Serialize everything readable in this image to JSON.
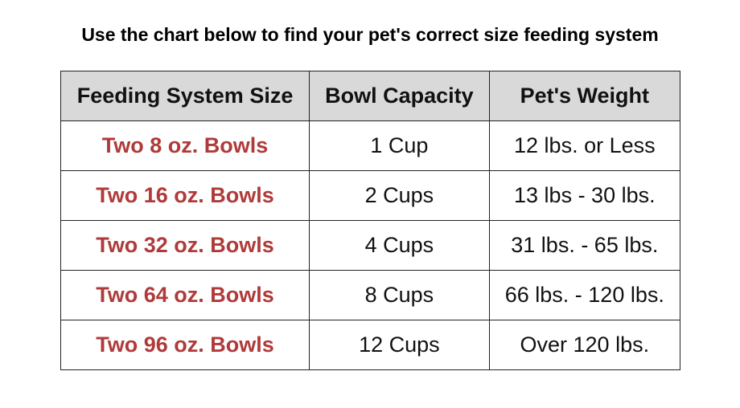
{
  "title": "Use the chart below to find your pet's correct size feeding system",
  "table": {
    "headers": [
      "Feeding System Size",
      "Bowl Capacity",
      "Pet's Weight"
    ],
    "rows": [
      [
        "Two 8 oz. Bowls",
        "1 Cup",
        "12 lbs. or Less"
      ],
      [
        "Two 16 oz. Bowls",
        "2 Cups",
        "13 lbs - 30 lbs."
      ],
      [
        "Two 32 oz. Bowls",
        "4 Cups",
        "31 lbs. - 65 lbs."
      ],
      [
        "Two 64 oz. Bowls",
        "8 Cups",
        "66 lbs. - 120 lbs."
      ],
      [
        "Two 96 oz. Bowls",
        "12 Cups",
        "Over 120 lbs."
      ]
    ]
  },
  "colors": {
    "size_text": "#b03a3a",
    "header_bg": "#d9d9d9"
  }
}
